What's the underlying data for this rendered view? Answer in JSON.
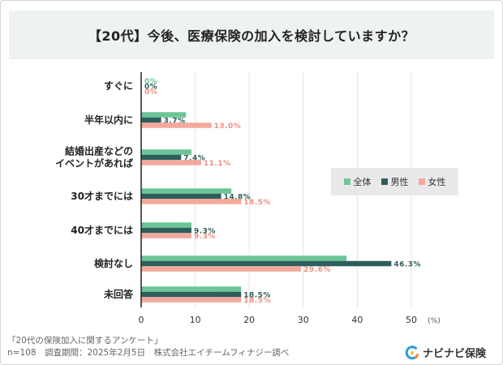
{
  "title": "【20代】今後、医療保険の加入を検討していますか？",
  "legend": {
    "all": "全体",
    "male": "男性",
    "female": "女性"
  },
  "colors": {
    "all": "#6cc596",
    "male": "#2e5e5c",
    "female": "#f3a99c",
    "grid": "#e3e3e3",
    "axis": "#222222"
  },
  "footer": {
    "line1": "「20代の保険加入に関するアンケート」",
    "line2": "n=108　調査期間：2025年2月5日　株式会社エイチームフィナジー調べ"
  },
  "brand": {
    "name": "ナビナビ保険",
    "icon": "navinavi-logo-icon"
  },
  "chart_data": {
    "type": "bar",
    "orientation": "horizontal",
    "categories": [
      [
        "すぐに"
      ],
      [
        "半年以内に"
      ],
      [
        "結婚出産などの",
        "イベントがあれば"
      ],
      [
        "30才までには"
      ],
      [
        "40才までには"
      ],
      [
        "検討なし"
      ],
      [
        "未回答"
      ]
    ],
    "series": [
      {
        "name": "全体",
        "key": "all",
        "values": [
          0,
          8.3,
          9.3,
          16.7,
          9.3,
          38.0,
          18.5
        ]
      },
      {
        "name": "男性",
        "key": "male",
        "values": [
          0,
          3.7,
          7.4,
          14.8,
          9.3,
          46.3,
          18.5
        ]
      },
      {
        "name": "女性",
        "key": "female",
        "values": [
          0,
          13.0,
          11.1,
          18.5,
          9.3,
          29.6,
          18.5
        ]
      }
    ],
    "data_labels": [
      [
        "0%",
        "8.3%",
        "9.3%",
        "16.7%",
        "9.3%",
        "38.0%",
        "18.5%"
      ],
      [
        "0%",
        "3.7%",
        "7.4%",
        "14.8%",
        "9.3%",
        "46.3%",
        "18.5%"
      ],
      [
        "0%",
        "13.0%",
        "11.1%",
        "18.5%",
        "9.3%",
        "29.6%",
        "18.5%"
      ]
    ],
    "xlim": [
      0,
      50
    ],
    "xticks": [
      0,
      10,
      20,
      30,
      40,
      50
    ],
    "xunit": "(%)",
    "grid": true,
    "legend_position": "right"
  }
}
